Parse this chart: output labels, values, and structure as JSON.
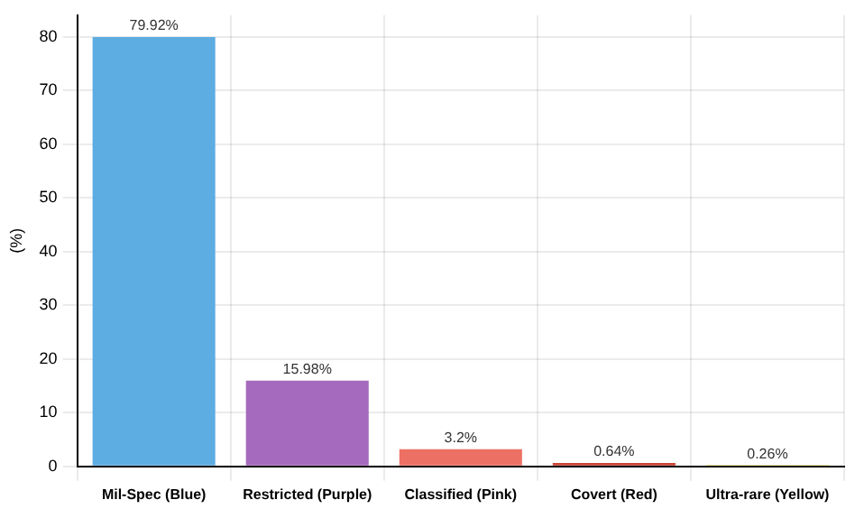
{
  "chart_data": {
    "type": "bar",
    "ylabel": "(%)",
    "categories": [
      "Mil-Spec (Blue)",
      "Restricted (Purple)",
      "Classified (Pink)",
      "Covert (Red)",
      "Ultra-rare (Yellow)"
    ],
    "values": [
      79.92,
      15.98,
      3.2,
      0.64,
      0.26
    ],
    "colors": [
      "#5dade2",
      "#a569bd",
      "#ec7063",
      "#cb4335",
      "#f4d03f"
    ],
    "ylim": [
      0,
      84
    ],
    "yticks": [
      0,
      10,
      20,
      30,
      40,
      50,
      60,
      70,
      80
    ],
    "value_labels": [
      "79.92%",
      "15.98%",
      "3.2%",
      "0.64%",
      "0.26%"
    ],
    "grid": true
  }
}
